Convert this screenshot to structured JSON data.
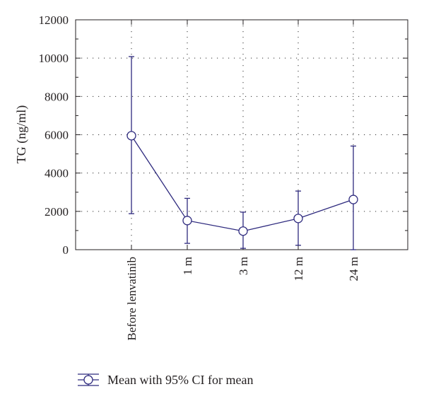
{
  "chart_data": {
    "type": "line",
    "title": "",
    "xlabel": "",
    "ylabel": "TG (ng/ml)",
    "categories": [
      "Before lenvatinib",
      "1 m",
      "3 m",
      "12 m",
      "24 m"
    ],
    "series": [
      {
        "name": "Mean with 95% CI for mean",
        "mean": [
          5950,
          1520,
          970,
          1630,
          2620
        ],
        "ci_lower": [
          1880,
          330,
          70,
          230,
          0
        ],
        "ci_upper": [
          10080,
          2680,
          1960,
          3060,
          5410
        ]
      }
    ],
    "yticks": [
      "0",
      "2000",
      "4000",
      "6000",
      "8000",
      "10000",
      "12000"
    ],
    "ylim": [
      0,
      12000
    ],
    "grid": "dotted",
    "legend_position": "bottom-left",
    "colors": {
      "series": "#2e2a7e",
      "axis": "#231f20",
      "grid": "#333333"
    }
  }
}
